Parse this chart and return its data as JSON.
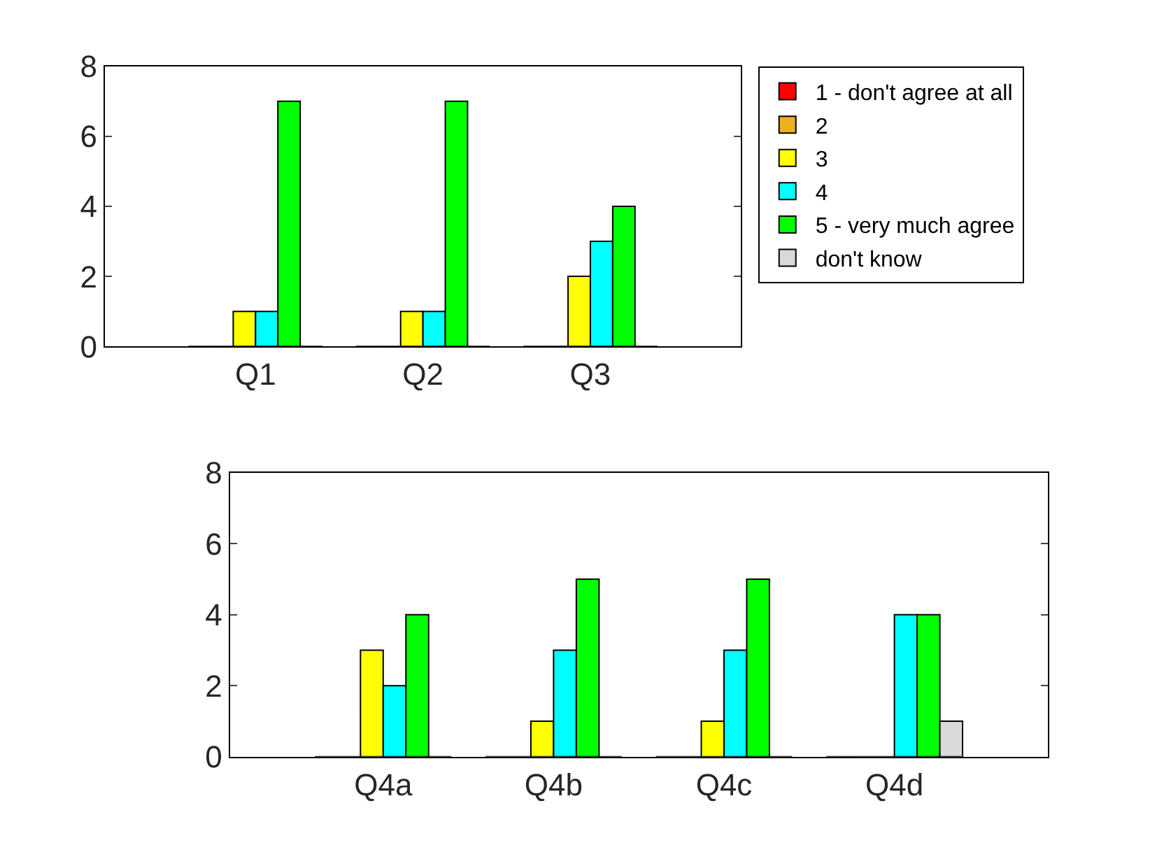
{
  "chart_data": [
    {
      "type": "bar",
      "categories": [
        "Q1",
        "Q2",
        "Q3"
      ],
      "ylim": [
        0,
        8
      ],
      "yticks": [
        0,
        2,
        4,
        6,
        8
      ],
      "legend": "right",
      "series": [
        {
          "name": "1 - don't agree at all",
          "color": "#ff0000",
          "values": [
            0,
            0,
            0
          ]
        },
        {
          "name": "2",
          "color": "#edb120",
          "values": [
            0,
            0,
            0
          ]
        },
        {
          "name": "3",
          "color": "#ffff00",
          "values": [
            1,
            1,
            2
          ]
        },
        {
          "name": "4",
          "color": "#00ffff",
          "values": [
            1,
            1,
            3
          ]
        },
        {
          "name": "5 - very much agree",
          "color": "#00ff00",
          "values": [
            7,
            7,
            4
          ]
        },
        {
          "name": "don't know",
          "color": "#d9d9d9",
          "values": [
            0,
            0,
            0
          ]
        }
      ]
    },
    {
      "type": "bar",
      "categories": [
        "Q4a",
        "Q4b",
        "Q4c",
        "Q4d"
      ],
      "ylim": [
        0,
        8
      ],
      "yticks": [
        0,
        2,
        4,
        6,
        8
      ],
      "legend": false,
      "series": [
        {
          "color": "#ff0000",
          "values": [
            0,
            0,
            0,
            0
          ]
        },
        {
          "color": "#edb120",
          "values": [
            0,
            0,
            0,
            0
          ]
        },
        {
          "color": "#ffff00",
          "values": [
            3,
            1,
            1,
            0
          ]
        },
        {
          "color": "#00ffff",
          "values": [
            2,
            3,
            3,
            4
          ]
        },
        {
          "color": "#00ff00",
          "values": [
            4,
            5,
            5,
            4
          ]
        },
        {
          "color": "#d9d9d9",
          "values": [
            0,
            0,
            0,
            1
          ]
        }
      ]
    }
  ]
}
